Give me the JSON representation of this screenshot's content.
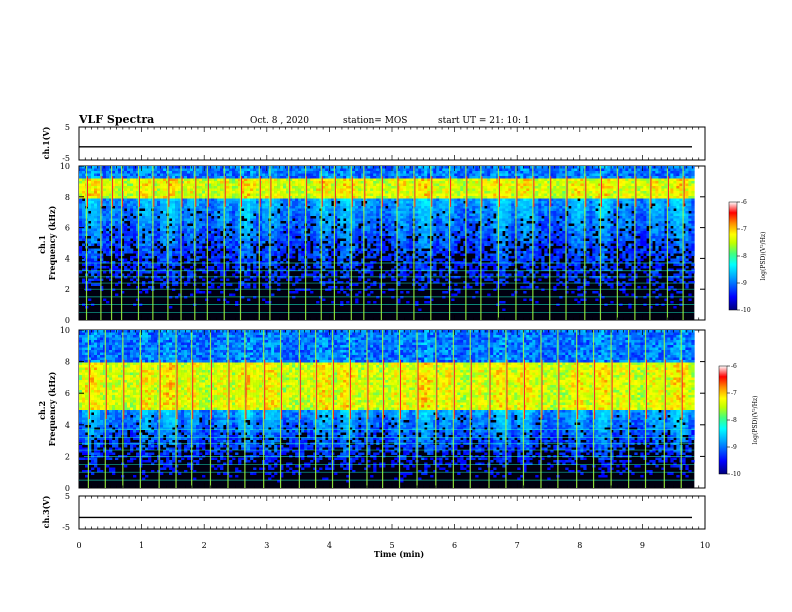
{
  "header": {
    "title": "VLF Spectra",
    "date": "Oct. 8  , 2020",
    "station": "station= MOS",
    "start": "start  UT  =   21: 10: 1"
  },
  "colors": {
    "background": "#000000",
    "trace": "#000000",
    "colormap": [
      "#00007a",
      "#0000ff",
      "#00a0ff",
      "#00ffff",
      "#40ff80",
      "#c0ff00",
      "#ffff00",
      "#ff9000",
      "#ff0000",
      "#ffffff"
    ]
  },
  "chart_data": [
    {
      "type": "line",
      "panel": "ch.1 waveform",
      "ylabel": "ch.1(V)",
      "ylim": [
        -5,
        5
      ],
      "yticks": [
        "5",
        "-5"
      ],
      "xlim": [
        0,
        10
      ],
      "level": -1
    },
    {
      "type": "heatmap",
      "panel": "ch.1 spectrogram",
      "ylabel": "ch.1\nFrequency (kHz)",
      "ylim": [
        0,
        10
      ],
      "yticks": [
        "0",
        "2",
        "4",
        "6",
        "8",
        "10"
      ],
      "xlim": [
        0,
        10
      ],
      "data_end_min": 9.83,
      "colorbar": {
        "label": "log(PSD)(V²/Hz)",
        "range": [
          -10,
          -6
        ],
        "ticks": [
          "-6",
          "-7",
          "-8",
          "-9",
          "-10"
        ]
      },
      "strong_band_khz": [
        8.0,
        9.2
      ],
      "sferic_times_min": [
        0.12,
        0.35,
        0.52,
        0.68,
        0.95,
        1.18,
        1.42,
        1.63,
        1.85,
        2.05,
        2.32,
        2.58,
        2.88,
        3.05,
        3.35,
        3.62,
        3.87,
        4.08,
        4.35,
        4.55,
        4.83,
        5.08,
        5.35,
        5.62,
        5.92,
        6.18,
        6.42,
        6.7,
        6.98,
        7.25,
        7.52,
        7.78,
        8.08,
        8.33,
        8.6,
        8.88,
        9.12,
        9.4,
        9.65
      ]
    },
    {
      "type": "heatmap",
      "panel": "ch.2 spectrogram",
      "ylabel": "ch.2\nFrequency (kHz)",
      "ylim": [
        0,
        10
      ],
      "yticks": [
        "0",
        "2",
        "4",
        "6",
        "8",
        "10"
      ],
      "xlim": [
        0,
        10
      ],
      "data_end_min": 9.83,
      "colorbar": {
        "label": "log(PSD)(V²/Hz)",
        "range": [
          -10,
          -6
        ],
        "ticks": [
          "-6",
          "-7",
          "-8",
          "-9",
          "-10"
        ]
      },
      "strong_band_khz": [
        5.0,
        8.0
      ],
      "sferic_times_min": [
        0.15,
        0.42,
        0.7,
        0.98,
        1.28,
        1.55,
        1.8,
        2.1,
        2.38,
        2.65,
        2.95,
        3.22,
        3.52,
        3.78,
        4.05,
        4.32,
        4.6,
        4.85,
        5.12,
        5.4,
        5.7,
        5.98,
        6.25,
        6.55,
        6.82,
        7.1,
        7.38,
        7.65,
        7.95,
        8.22,
        8.5,
        8.78,
        9.05,
        9.35,
        9.62
      ]
    },
    {
      "type": "line",
      "panel": "ch.3 waveform",
      "ylabel": "ch.3(V)",
      "ylim": [
        -5,
        5
      ],
      "yticks": [
        "5",
        "-5"
      ],
      "xlim": [
        0,
        10
      ],
      "level": -1.5
    }
  ],
  "xaxis": {
    "label": "Time (min)",
    "ticks": [
      "0",
      "1",
      "2",
      "3",
      "4",
      "5",
      "6",
      "7",
      "8",
      "9",
      "10"
    ]
  }
}
